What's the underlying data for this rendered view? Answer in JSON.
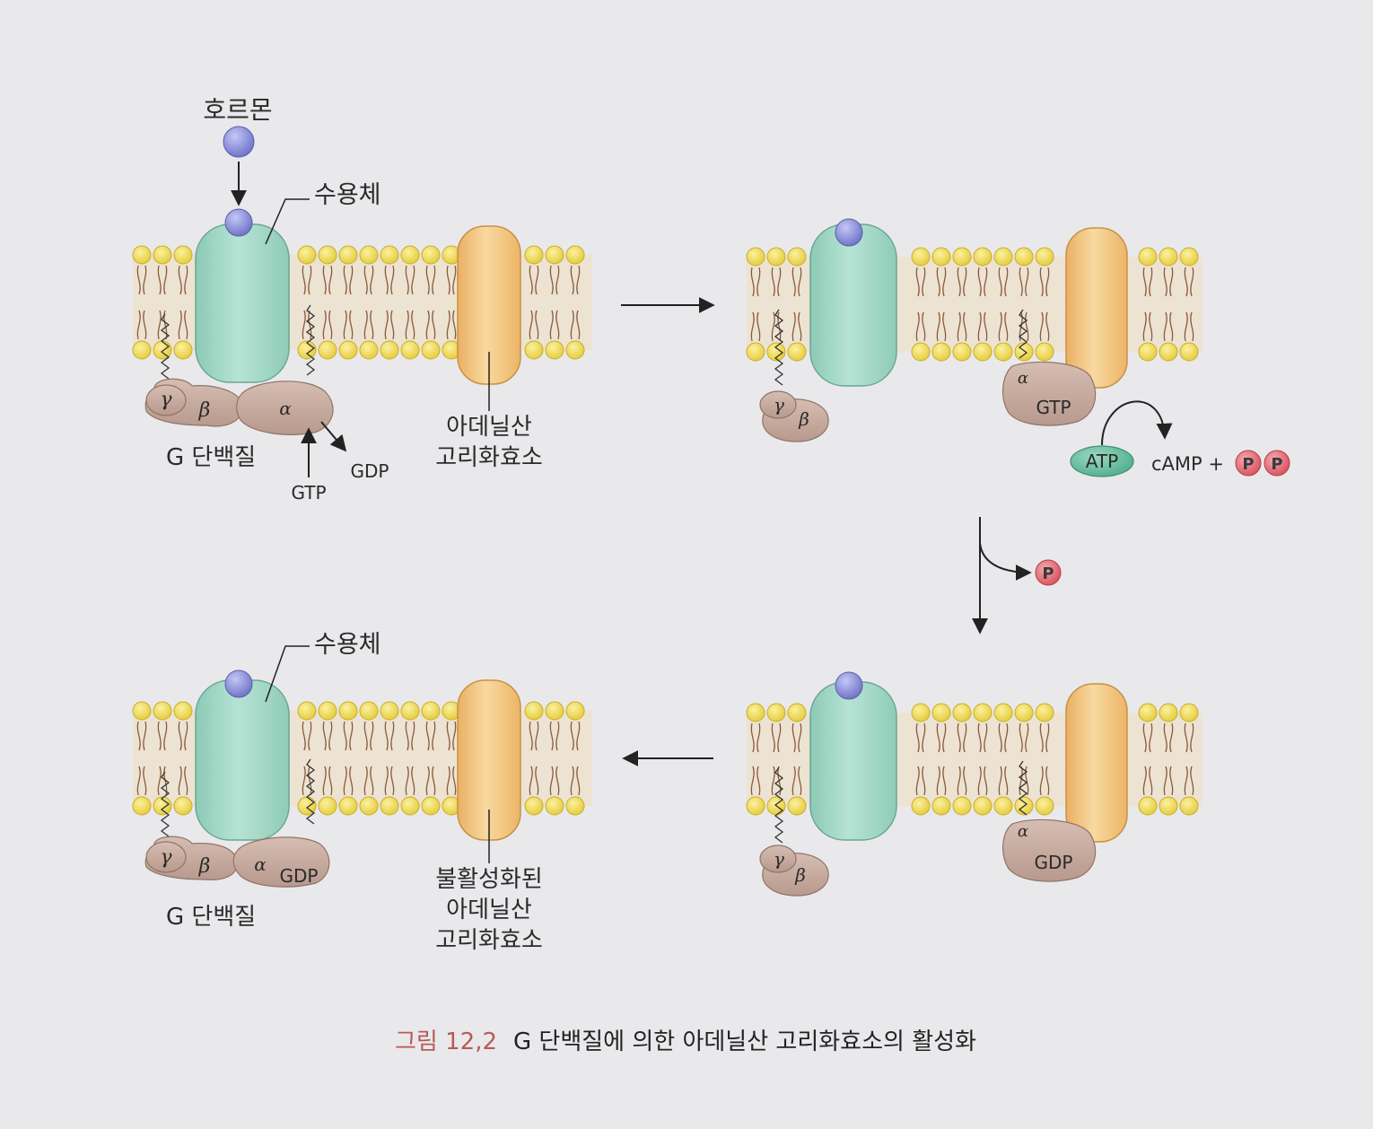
{
  "panels": {
    "top_left": {
      "hormone": "호르몬",
      "receptor": "수용체",
      "gamma": "γ",
      "beta": "β",
      "alpha": "α",
      "g_protein": "G 단백질",
      "gtp": "GTP",
      "gdp": "GDP",
      "enzyme_line1": "아데닐산",
      "enzyme_line2": "고리화효소"
    },
    "top_right": {
      "gamma": "γ",
      "beta": "β",
      "alpha": "α",
      "gtp": "GTP",
      "atp": "ATP",
      "camp_plus": "cAMP +",
      "p": "P"
    },
    "phosphate_release": {
      "p": "P"
    },
    "bottom_right": {
      "gamma": "γ",
      "beta": "β",
      "alpha": "α",
      "gdp": "GDP"
    },
    "bottom_left": {
      "receptor": "수용체",
      "gamma": "γ",
      "beta": "β",
      "alpha": "α",
      "gdp": "GDP",
      "g_protein": "G 단백질",
      "enzyme_line1": "불활성화된",
      "enzyme_line2": "아데닐산",
      "enzyme_line3": "고리화효소"
    }
  },
  "caption": {
    "figure_number": "그림 12,2",
    "title": "G 단백질에 의한 아데닐산 고리화효소의 활성화"
  },
  "colors": {
    "receptor": "#9fd6c4",
    "enzyme": "#f2c27c",
    "lipid_head": "#f1de5a",
    "hormone": "#8b8ed8",
    "g_protein": "#c9aea3",
    "atp": "#6fc3a6",
    "phosphate": "#e0707a"
  }
}
